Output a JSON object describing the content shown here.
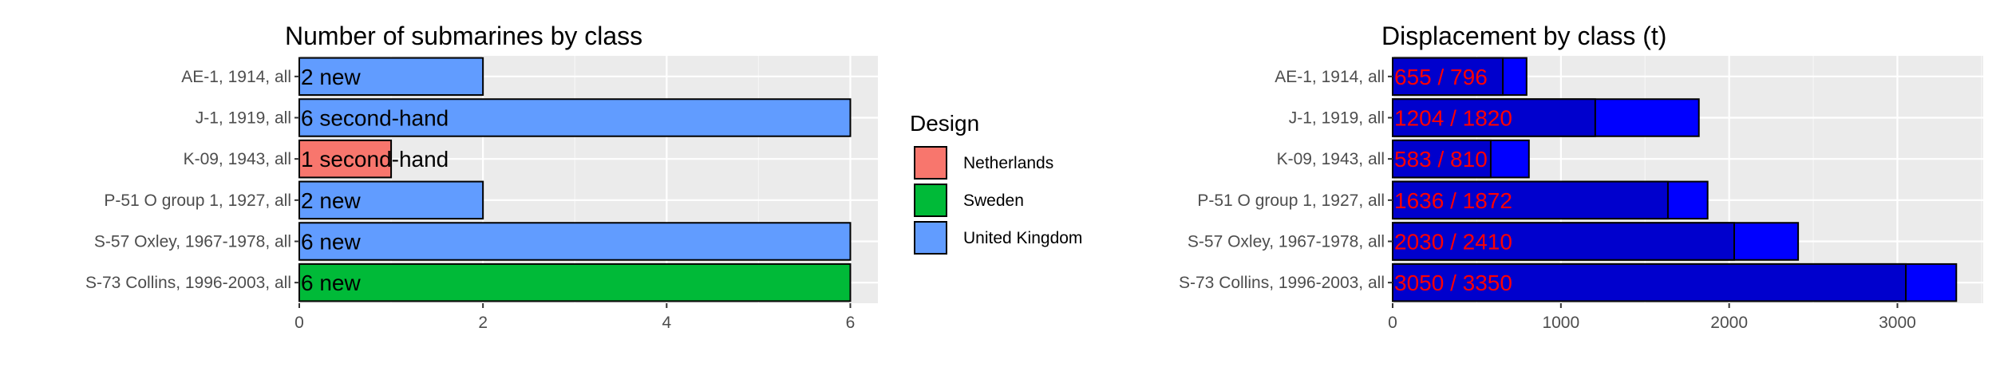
{
  "chart_data": [
    {
      "type": "bar",
      "orientation": "horizontal",
      "title": "Number of submarines by class",
      "categories": [
        "AE-1, 1914, all",
        "J-1, 1919, all",
        "K-09, 1943, all",
        "P-51 O group 1, 1927, all",
        "S-57 Oxley, 1967-1978, all",
        "S-73 Collins, 1996-2003, all"
      ],
      "values": [
        2,
        6,
        1,
        2,
        6,
        6
      ],
      "bar_labels": [
        "2 new",
        "6 second-hand",
        "1 second-hand",
        "2 new",
        "6 new",
        "6 new"
      ],
      "fill_group": [
        "United Kingdom",
        "United Kingdom",
        "Netherlands",
        "United Kingdom",
        "United Kingdom",
        "Sweden"
      ],
      "xticks": [
        0,
        2,
        4,
        6
      ],
      "xlim": [
        0,
        6.3
      ],
      "grid": true,
      "legend": {
        "title": "Design",
        "placement": "right",
        "entries": [
          {
            "label": "Netherlands",
            "color": "#F8766D"
          },
          {
            "label": "Sweden",
            "color": "#00BA38"
          },
          {
            "label": "United Kingdom",
            "color": "#619CFF"
          }
        ]
      }
    },
    {
      "type": "bar",
      "orientation": "horizontal",
      "stacked_overlay": true,
      "title": "Displacement by class (t)",
      "categories": [
        "AE-1, 1914, all",
        "J-1, 1919, all",
        "K-09, 1943, all",
        "P-51 O group 1, 1927, all",
        "S-57 Oxley, 1967-1978, all",
        "S-73 Collins, 1996-2003, all"
      ],
      "series": [
        {
          "values": [
            796,
            1820,
            810,
            1872,
            2410,
            3350
          ],
          "color": "#0000FF"
        },
        {
          "values": [
            655,
            1204,
            583,
            1636,
            2030,
            3050
          ],
          "color": "#0000CD"
        }
      ],
      "bar_labels": [
        "655 / 796",
        "1204 / 1820",
        "583 / 810",
        "1636 / 1872",
        "2030 / 2410",
        "3050 / 3350"
      ],
      "label_color": "#FF0000",
      "xticks": [
        0,
        1000,
        2000,
        3000
      ],
      "xlim": [
        0,
        3510
      ],
      "grid": true
    }
  ],
  "colors": {
    "panel_bg": "#EBEBEB",
    "grid_major": "#FFFFFF",
    "grid_minor": "#F5F5F5",
    "bar_outline": "#000000",
    "tick_text": "#4D4D4D"
  }
}
